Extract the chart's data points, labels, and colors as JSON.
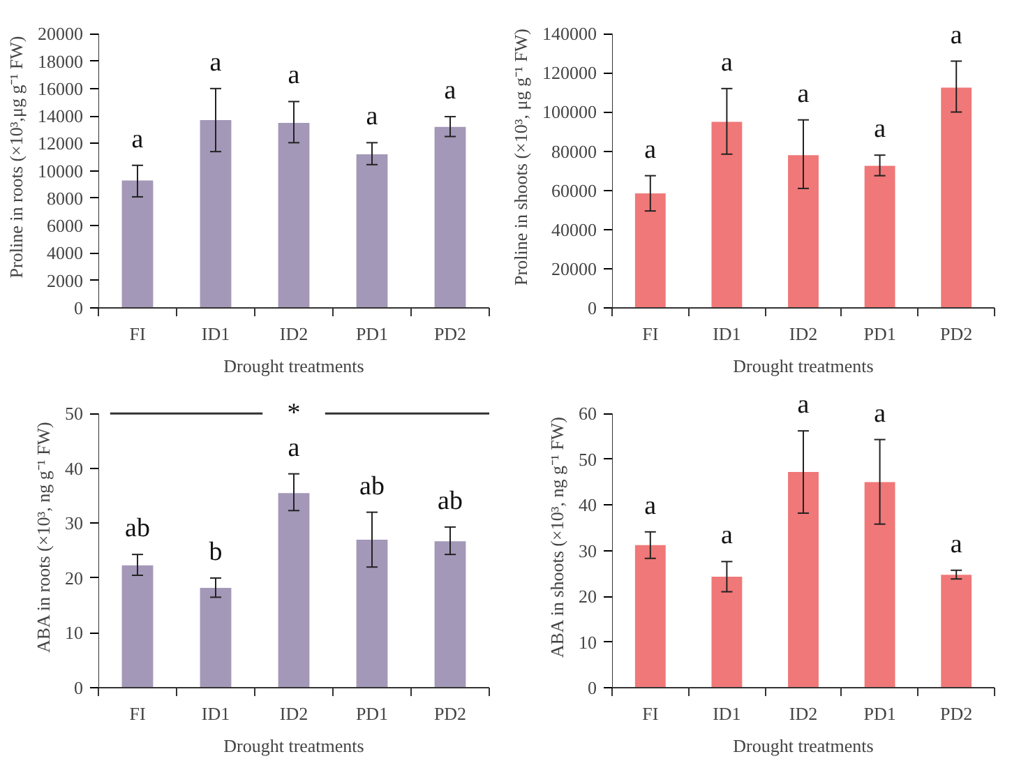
{
  "chart_data": [
    {
      "type": "bar",
      "categories": [
        "FI",
        "ID1",
        "ID2",
        "PD1",
        "PD2"
      ],
      "xlabel": "Drought treatments",
      "ylabel": "Proline in roots (×10³,μg g⁻¹ FW)",
      "series": [
        {
          "color": "#a398b8",
          "values": [
            9300,
            13700,
            13500,
            11200,
            13200
          ],
          "errors": [
            [
              8100,
              10400
            ],
            [
              11400,
              16000
            ],
            [
              12050,
              15050
            ],
            [
              10450,
              12050
            ],
            [
              12500,
              13950
            ]
          ]
        }
      ],
      "ylim": [
        0,
        20000
      ],
      "yticks": [
        0,
        2000,
        4000,
        6000,
        8000,
        10000,
        12000,
        14000,
        16000,
        18000,
        20000
      ],
      "annotations": [
        "a",
        "a",
        "a",
        "a",
        "a"
      ]
    },
    {
      "type": "bar",
      "categories": [
        "FI",
        "ID1",
        "ID2",
        "PD1",
        "PD2"
      ],
      "xlabel": "Drought treatments",
      "ylabel": "Proline in shoots (×10³, μg g⁻¹ FW)",
      "series": [
        {
          "color": "#f07878",
          "values": [
            58500,
            95000,
            78000,
            72500,
            112500
          ],
          "errors": [
            [
              49500,
              67500
            ],
            [
              78500,
              112000
            ],
            [
              61000,
              96000
            ],
            [
              67500,
              78000
            ],
            [
              100000,
              126000
            ]
          ]
        }
      ],
      "ylim": [
        0,
        140000
      ],
      "yticks": [
        0,
        20000,
        40000,
        60000,
        80000,
        100000,
        120000,
        140000
      ],
      "annotations": [
        "a",
        "a",
        "a",
        "a",
        "a"
      ]
    },
    {
      "type": "bar",
      "categories": [
        "FI",
        "ID1",
        "ID2",
        "PD1",
        "PD2"
      ],
      "xlabel": "Drought treatments",
      "ylabel": "ABA in roots (×10³, ng g⁻¹ FW)",
      "series": [
        {
          "color": "#a398b8",
          "values": [
            22.3,
            18.2,
            35.5,
            27,
            26.7
          ],
          "errors": [
            [
              20.5,
              24.3
            ],
            [
              16.5,
              20
            ],
            [
              32.3,
              39
            ],
            [
              22,
              32
            ],
            [
              24.3,
              29.3
            ]
          ]
        }
      ],
      "ylim": [
        0,
        50
      ],
      "yticks": [
        0,
        10,
        20,
        30,
        40,
        50
      ],
      "annotations": [
        "ab",
        "b",
        "a",
        "ab",
        "ab",
        "*"
      ]
    },
    {
      "type": "bar",
      "categories": [
        "FI",
        "ID1",
        "ID2",
        "PD1",
        "PD2"
      ],
      "xlabel": "Drought treatments",
      "ylabel": "ABA in shoots (×10³, ng g⁻¹ FW)",
      "series": [
        {
          "color": "#f07878",
          "values": [
            31.2,
            24.3,
            47.2,
            45,
            24.7
          ],
          "errors": [
            [
              28.3,
              34.1
            ],
            [
              21,
              27.6
            ],
            [
              38.2,
              56.2
            ],
            [
              35.8,
              54.3
            ],
            [
              23.8,
              25.7
            ]
          ]
        }
      ],
      "ylim": [
        0,
        60
      ],
      "yticks": [
        0,
        10,
        20,
        30,
        40,
        50,
        60
      ],
      "annotations": [
        "a",
        "a",
        "a",
        "a",
        "a"
      ]
    }
  ]
}
